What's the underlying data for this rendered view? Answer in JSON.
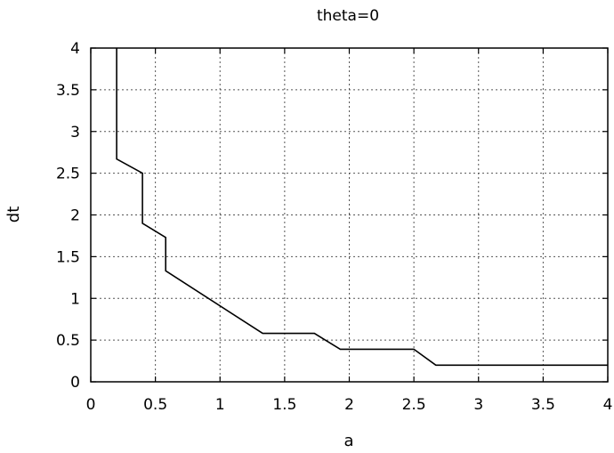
{
  "chart_data": {
    "type": "line",
    "title": "theta=0",
    "xlabel": "a",
    "ylabel": "dt",
    "xlim": [
      0,
      4
    ],
    "ylim": [
      0,
      4
    ],
    "xticks": [
      "0",
      "0.5",
      "1",
      "1.5",
      "2",
      "2.5",
      "3",
      "3.5",
      "4"
    ],
    "yticks": [
      "0",
      "0.5",
      "1",
      "1.5",
      "2",
      "2.5",
      "3",
      "3.5",
      "4"
    ],
    "grid": true,
    "series": [
      {
        "x": [
          0.2,
          0.2,
          0.4,
          0.4,
          0.58,
          0.58,
          1.33,
          1.73,
          1.93,
          2.5,
          2.67,
          4.0
        ],
        "y": [
          4.0,
          2.67,
          2.5,
          1.9,
          1.73,
          1.33,
          0.58,
          0.58,
          0.39,
          0.39,
          0.2,
          0.2
        ]
      }
    ]
  }
}
